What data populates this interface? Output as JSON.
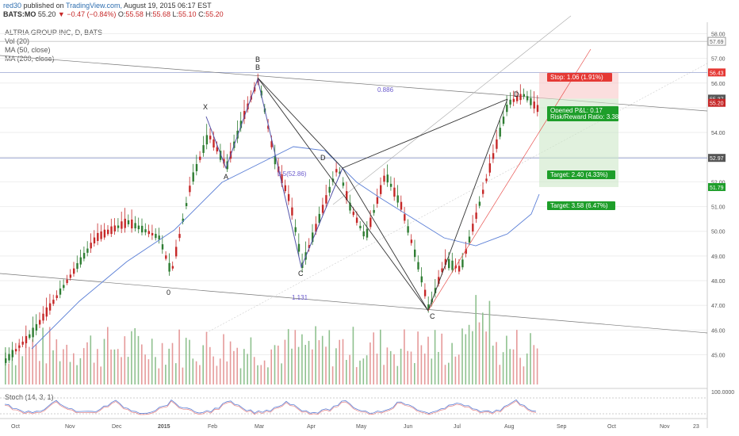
{
  "header": {
    "author": "red30",
    "published_text": "published on",
    "site": "TradingView.com,",
    "date": "August 19, 2015 06:17 EST",
    "symbol": "BATS:MO",
    "last": "55.20",
    "change_arrow": "▼",
    "change": "−0.47 (−0.84%)",
    "o_label": "O:",
    "o": "55.58",
    "h_label": "H:",
    "h": "55.68",
    "l_label": "L:",
    "l": "55.10",
    "c_label": "C:",
    "c": "55.20"
  },
  "legend": {
    "title": "ALTRIA GROUP INC, D, BATS",
    "vol": "Vol (20)",
    "ma50": "MA (50, close)",
    "ma200": "MA (200, close)",
    "stoch": "Stoch (14, 3, 1)"
  },
  "colors": {
    "up": "#2e7d32",
    "down": "#c62828",
    "ma50": "#5b7fd6",
    "pattern": "#333333",
    "blue_pattern": "#5555aa",
    "stop": "#e53935",
    "target": "#1e9e2a"
  },
  "chart_data": {
    "type": "candlestick",
    "symbol": "BATS:MO",
    "y_axis_ticks": [
      "58.00",
      "57.69",
      "57.00",
      "56.43",
      "56.00",
      "55.37",
      "55.20",
      "54.00",
      "52.97",
      "52.00",
      "51.79",
      "51.00",
      "50.00",
      "49.00",
      "48.00",
      "47.00",
      "46.00",
      "45.00"
    ],
    "y_range": [
      44.6,
      58.4
    ],
    "x_axis_ticks": [
      "Oct",
      "Nov",
      "Dec",
      "2015",
      "Feb",
      "Mar",
      "Apr",
      "May",
      "Jun",
      "Jul",
      "Aug",
      "Sep",
      "Oct",
      "Nov",
      "23"
    ],
    "price_badges": [
      {
        "value": "57.69",
        "color": "#ffffff"
      },
      {
        "value": "56.43",
        "color": "#e53935"
      },
      {
        "value": "55.37",
        "color": "#555555"
      },
      {
        "value": "55.20",
        "color": "#c62828"
      },
      {
        "value": "52.97",
        "color": "#555555"
      },
      {
        "value": "51.79",
        "color": "#1e9e2a"
      }
    ],
    "pattern_points": [
      {
        "label": "X",
        "date": "Jan 2015",
        "price": 55.4
      },
      {
        "label": "A",
        "date": "Feb 2015",
        "price": 53.0
      },
      {
        "label": "B",
        "date": "Mar 2015",
        "price": 56.5
      },
      {
        "label": "B",
        "date": "Mar 2015",
        "price": 56.5
      },
      {
        "label": "C",
        "date": "Mar 2015",
        "price": 49.1
      },
      {
        "label": "D",
        "date": "Apr 2015",
        "price": 53.0
      },
      {
        "label": "C",
        "date": "Jun 2015",
        "price": 47.4
      },
      {
        "label": "D",
        "date": "Aug 2015",
        "price": 55.8
      },
      {
        "label": "0",
        "date": "Jan 2015",
        "price": 48.5
      }
    ],
    "fib_labels": [
      "0.886",
      "0.5(52.86)",
      "1.131"
    ],
    "position": {
      "stop": "Stop: 1.06 (1.91%)",
      "opened_pl": "Opened P&L: 0.17",
      "risk_reward": "Risk/Reward Ratio: 3.38",
      "target1": "Target: 2.40 (4.33%)",
      "target2": "Target: 3.58 (6.47%)",
      "entry": 55.37,
      "stop_price": 56.43,
      "target1_price": 52.97,
      "target2_price": 51.79
    },
    "stoch_tick": "100.0000"
  }
}
